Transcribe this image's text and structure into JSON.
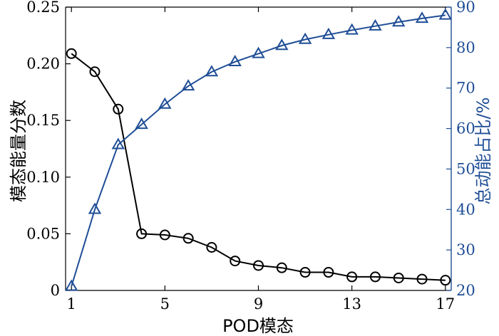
{
  "chart_data": {
    "type": "line",
    "x": [
      1,
      2,
      3,
      4,
      5,
      6,
      7,
      8,
      9,
      10,
      11,
      12,
      13,
      14,
      15,
      16,
      17
    ],
    "xlabel": "POD模态",
    "ylabel_left": "模态能量分数",
    "ylabel_right": "总动能占比/%",
    "xlim": [
      0.75,
      17.25
    ],
    "ylim_left": [
      0,
      0.25
    ],
    "ylim_right": [
      20,
      90
    ],
    "xticks": [
      1,
      5,
      9,
      13,
      17
    ],
    "yticks_left": [
      "0",
      "0.05",
      "0.10",
      "0.15",
      "0.20",
      "0.25"
    ],
    "yticks_right": [
      "20",
      "30",
      "40",
      "50",
      "60",
      "70",
      "80",
      "90"
    ],
    "grid": false,
    "series": [
      {
        "axis": "left",
        "marker": "circle",
        "color": "#000000",
        "values": [
          0.209,
          0.193,
          0.16,
          0.05,
          0.049,
          0.046,
          0.038,
          0.026,
          0.022,
          0.02,
          0.016,
          0.016,
          0.012,
          0.012,
          0.011,
          0.01,
          0.009
        ]
      },
      {
        "axis": "right",
        "marker": "triangle",
        "color": "#1f4e96",
        "values": [
          21,
          40,
          56,
          61,
          66,
          70.5,
          74,
          76.5,
          78.5,
          80.5,
          82,
          83.2,
          84.3,
          85.3,
          86.3,
          87.2,
          88
        ]
      }
    ]
  }
}
